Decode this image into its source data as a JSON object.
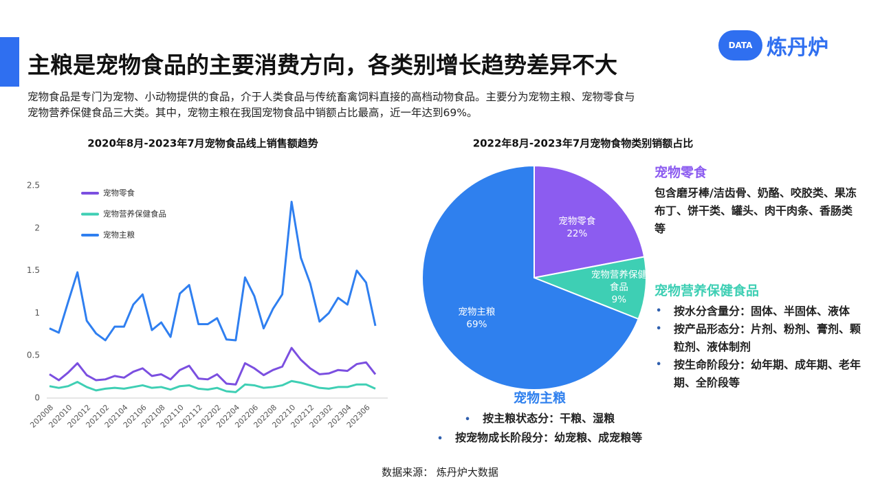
{
  "header": {
    "title": "主粮是宠物食品的主要消费方向，各类别增长趋势差异不大"
  },
  "logo": {
    "badge": "DATA",
    "text": "炼丹炉"
  },
  "intro": [
    "宠物食品是专门为宠物、小动物提供的食品，介于人类食品与传统畜禽饲料直接的高档动物食品。主要分为宠物主粮、宠物零食与",
    "宠物营养保健食品三大类。其中，宠物主粮在我国宠物食品中销额占比最高，近一年达到69%。"
  ],
  "chart_data": [
    {
      "type": "line",
      "title": "2020年8月-2023年7月宠物食品线上销售额趋势",
      "categories": [
        "202008",
        null,
        "202010",
        null,
        "202012",
        null,
        "202102",
        null,
        "202104",
        null,
        "202106",
        null,
        "202108",
        null,
        "202110",
        null,
        "202112",
        null,
        "202202",
        null,
        "202204",
        null,
        "202206",
        null,
        "202208",
        null,
        "202210",
        null,
        "202212",
        null,
        "202302",
        null,
        "202304",
        null,
        "202306",
        null
      ],
      "series": [
        {
          "name": "宠物零食",
          "color": "#7b4fe0",
          "values": [
            0.28,
            0.21,
            0.3,
            0.41,
            0.27,
            0.21,
            0.22,
            0.26,
            0.24,
            0.31,
            0.35,
            0.26,
            0.28,
            0.22,
            0.33,
            0.38,
            0.23,
            0.22,
            0.28,
            0.17,
            0.16,
            0.41,
            0.35,
            0.27,
            0.33,
            0.37,
            0.59,
            0.45,
            0.35,
            0.28,
            0.29,
            0.33,
            0.32,
            0.4,
            0.42,
            0.28
          ]
        },
        {
          "name": "宠物营养保健食品",
          "color": "#3fcfb4",
          "values": [
            0.14,
            0.12,
            0.14,
            0.19,
            0.13,
            0.09,
            0.11,
            0.12,
            0.11,
            0.13,
            0.15,
            0.12,
            0.13,
            0.1,
            0.14,
            0.15,
            0.11,
            0.1,
            0.12,
            0.08,
            0.07,
            0.16,
            0.15,
            0.12,
            0.13,
            0.15,
            0.2,
            0.18,
            0.15,
            0.12,
            0.11,
            0.13,
            0.13,
            0.16,
            0.16,
            0.11
          ]
        },
        {
          "name": "宠物主粮",
          "color": "#2f7ff0",
          "values": [
            0.82,
            0.77,
            1.13,
            1.48,
            0.91,
            0.76,
            0.68,
            0.84,
            0.84,
            1.1,
            1.22,
            0.8,
            0.89,
            0.72,
            1.23,
            1.33,
            0.87,
            0.87,
            0.94,
            0.69,
            0.68,
            1.42,
            1.2,
            0.82,
            1.05,
            1.22,
            2.31,
            1.65,
            1.35,
            0.9,
            1.0,
            1.18,
            1.1,
            1.5,
            1.36,
            0.85
          ]
        }
      ],
      "ylim": [
        0,
        2.5
      ],
      "yticks": [
        0,
        0.5,
        1,
        1.5,
        2,
        2.5
      ],
      "legend": "top-left"
    },
    {
      "type": "pie",
      "title": "2022年8月-2023年7月宠物食物类别销额占比",
      "categories": [
        "宠物零食",
        "宠物营养保健食品",
        "宠物主粮"
      ],
      "values": [
        22,
        9,
        69
      ],
      "value_labels": [
        "22%",
        "9%",
        "69%"
      ],
      "colors": [
        "#8c5cf0",
        "#3ecfb4",
        "#2f80ee"
      ]
    }
  ],
  "notes": [
    {
      "heading": "宠物零食",
      "text": "包含磨牙棒/洁齿骨、奶酪、咬胶类、果冻布丁、饼干类、罐头、肉干肉条、香肠类等"
    },
    {
      "heading": "宠物营养保健食品",
      "bullets": [
        "按水分含量分：固体、半固体、液体",
        "按产品形态分：片剂、粉剂、膏剂、颗粒剂、液体制剂",
        "按生命阶段分：幼年期、成年期、老年期、全阶段等"
      ]
    },
    {
      "heading": "宠物主粮",
      "bullets": [
        "按主粮状态分：干粮、湿粮",
        "按宠物成长阶段分：幼宠粮、成宠粮等"
      ]
    }
  ],
  "source": "数据来源：  炼丹炉大数据"
}
